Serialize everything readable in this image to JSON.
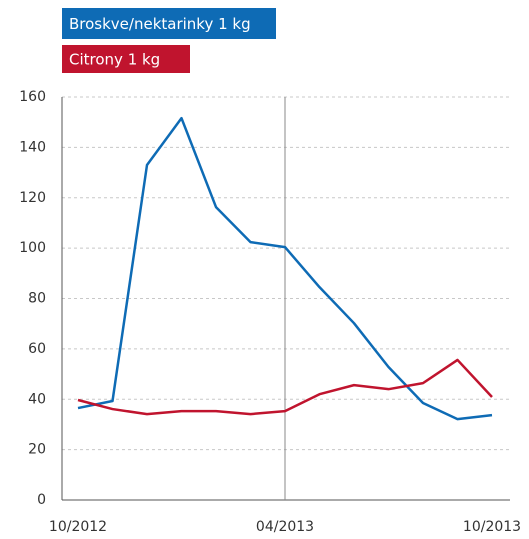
{
  "chart_data": {
    "type": "line",
    "categories": [
      "10/2012",
      null,
      null,
      null,
      null,
      null,
      "04/2013",
      null,
      null,
      null,
      null,
      null,
      "10/2013"
    ],
    "series": [
      {
        "name": "Broskve/nektarinky 1 kg",
        "color": "#0e6bb5",
        "values": [
          36.5,
          39.3,
          133,
          151.6,
          116.3,
          102.4,
          100.4,
          84.5,
          70.2,
          52.8,
          38.5,
          32.1,
          33.7
        ]
      },
      {
        "name": "Citrony 1 kg",
        "color": "#c0142e",
        "values": [
          39.7,
          36.1,
          34.1,
          35.3,
          35.3,
          34.1,
          35.3,
          42,
          45.6,
          44,
          46.4,
          55.6,
          40.9
        ]
      }
    ],
    "ylim": [
      0,
      160
    ],
    "yticks": [
      0,
      20,
      40,
      60,
      80,
      100,
      120,
      140,
      160
    ],
    "grid": true
  }
}
